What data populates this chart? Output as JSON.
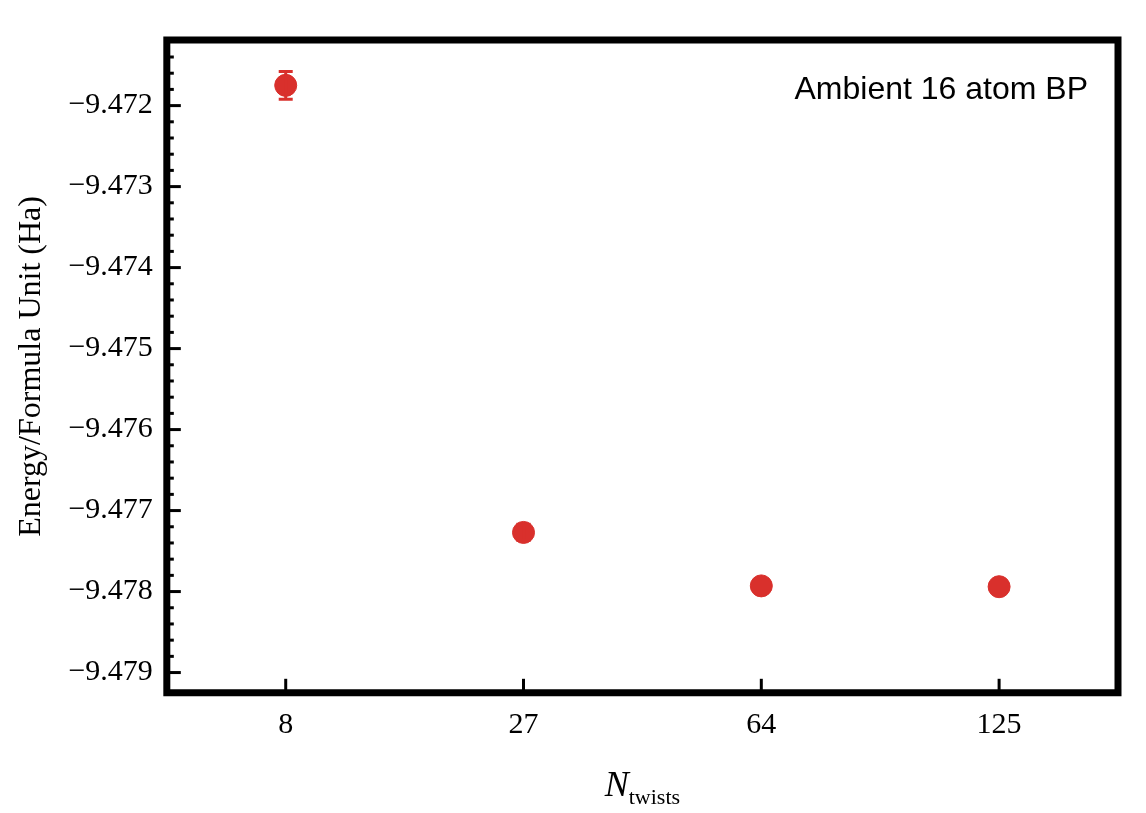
{
  "chart_data": {
    "type": "scatter",
    "xlabel": "N$_{twists}$",
    "ylabel": "Energy/Formula Unit (Ha)",
    "categories": [
      "8",
      "27",
      "64",
      "125"
    ],
    "series": [
      {
        "color": "#d9302c",
        "values": [
          -9.47175,
          -9.47727,
          -9.47793,
          -9.47794
        ],
        "errors": [
          0.00017,
          0.0001,
          null,
          null
        ]
      }
    ],
    "ylim": [
      -9.47925,
      -9.47119
    ],
    "yticks": [
      -9.479,
      -9.478,
      -9.477,
      -9.476,
      -9.475,
      -9.474,
      -9.473,
      -9.472
    ],
    "annotations": [
      "Ambient 16 atom BP"
    ],
    "marker": "circle",
    "grid": false,
    "legend": false
  }
}
